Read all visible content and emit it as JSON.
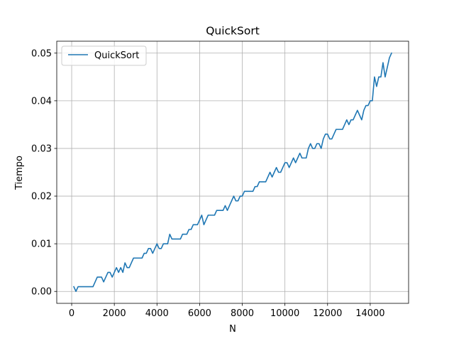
{
  "chart_data": {
    "type": "line",
    "title": "QuickSort",
    "xlabel": "N",
    "ylabel": "Tiempo",
    "xlim": [
      -700,
      15800
    ],
    "ylim": [
      -0.0025,
      0.0525
    ],
    "xticks": [
      0,
      2000,
      4000,
      6000,
      8000,
      10000,
      12000,
      14000
    ],
    "xtick_labels": [
      "0",
      "2000",
      "4000",
      "6000",
      "8000",
      "10000",
      "12000",
      "14000"
    ],
    "yticks": [
      0.0,
      0.01,
      0.02,
      0.03,
      0.04,
      0.05
    ],
    "ytick_labels": [
      "0.00",
      "0.01",
      "0.02",
      "0.03",
      "0.04",
      "0.05"
    ],
    "grid": true,
    "legend_position": "top-left",
    "colors": {
      "series": "#1f77b4",
      "grid": "#b0b0b0"
    },
    "series": [
      {
        "name": "QuickSort",
        "x": [
          100,
          200,
          300,
          400,
          500,
          600,
          700,
          800,
          900,
          1000,
          1100,
          1200,
          1300,
          1400,
          1500,
          1600,
          1700,
          1800,
          1900,
          2000,
          2100,
          2200,
          2300,
          2400,
          2500,
          2600,
          2700,
          2800,
          2900,
          3000,
          3100,
          3200,
          3300,
          3400,
          3500,
          3600,
          3700,
          3800,
          3900,
          4000,
          4100,
          4200,
          4300,
          4400,
          4500,
          4600,
          4700,
          4800,
          4900,
          5000,
          5100,
          5200,
          5300,
          5400,
          5500,
          5600,
          5700,
          5800,
          5900,
          6000,
          6100,
          6200,
          6300,
          6400,
          6500,
          6600,
          6700,
          6800,
          6900,
          7000,
          7100,
          7200,
          7300,
          7400,
          7500,
          7600,
          7700,
          7800,
          7900,
          8000,
          8100,
          8200,
          8300,
          8400,
          8500,
          8600,
          8700,
          8800,
          8900,
          9000,
          9100,
          9200,
          9300,
          9400,
          9500,
          9600,
          9700,
          9800,
          9900,
          10000,
          10100,
          10200,
          10300,
          10400,
          10500,
          10600,
          10700,
          10800,
          10900,
          11000,
          11100,
          11200,
          11300,
          11400,
          11500,
          11600,
          11700,
          11800,
          11900,
          12000,
          12100,
          12200,
          12300,
          12400,
          12500,
          12600,
          12700,
          12800,
          12900,
          13000,
          13100,
          13200,
          13300,
          13400,
          13500,
          13600,
          13700,
          13800,
          13900,
          14000,
          14100,
          14200,
          14300,
          14400,
          14500,
          14600,
          14700,
          14800,
          14900,
          15000
        ],
        "y": [
          0.001,
          0.0,
          0.001,
          0.001,
          0.001,
          0.001,
          0.001,
          0.001,
          0.001,
          0.001,
          0.002,
          0.003,
          0.003,
          0.003,
          0.002,
          0.003,
          0.004,
          0.004,
          0.003,
          0.004,
          0.005,
          0.004,
          0.005,
          0.004,
          0.006,
          0.005,
          0.005,
          0.006,
          0.007,
          0.007,
          0.007,
          0.007,
          0.007,
          0.008,
          0.008,
          0.009,
          0.009,
          0.008,
          0.009,
          0.01,
          0.009,
          0.009,
          0.01,
          0.01,
          0.01,
          0.012,
          0.011,
          0.011,
          0.011,
          0.011,
          0.011,
          0.012,
          0.012,
          0.012,
          0.013,
          0.013,
          0.014,
          0.014,
          0.014,
          0.015,
          0.016,
          0.014,
          0.015,
          0.016,
          0.016,
          0.016,
          0.016,
          0.017,
          0.017,
          0.017,
          0.017,
          0.018,
          0.017,
          0.018,
          0.019,
          0.02,
          0.019,
          0.019,
          0.02,
          0.02,
          0.021,
          0.021,
          0.021,
          0.021,
          0.021,
          0.022,
          0.022,
          0.023,
          0.023,
          0.023,
          0.023,
          0.024,
          0.025,
          0.024,
          0.025,
          0.026,
          0.025,
          0.025,
          0.026,
          0.027,
          0.027,
          0.026,
          0.027,
          0.028,
          0.027,
          0.028,
          0.029,
          0.028,
          0.028,
          0.028,
          0.03,
          0.031,
          0.03,
          0.03,
          0.031,
          0.031,
          0.03,
          0.032,
          0.033,
          0.033,
          0.032,
          0.032,
          0.033,
          0.034,
          0.034,
          0.034,
          0.034,
          0.035,
          0.036,
          0.035,
          0.036,
          0.036,
          0.037,
          0.038,
          0.037,
          0.036,
          0.038,
          0.039,
          0.039,
          0.04,
          0.04,
          0.045,
          0.043,
          0.045,
          0.045,
          0.048,
          0.045,
          0.047,
          0.049,
          0.05
        ]
      }
    ]
  }
}
